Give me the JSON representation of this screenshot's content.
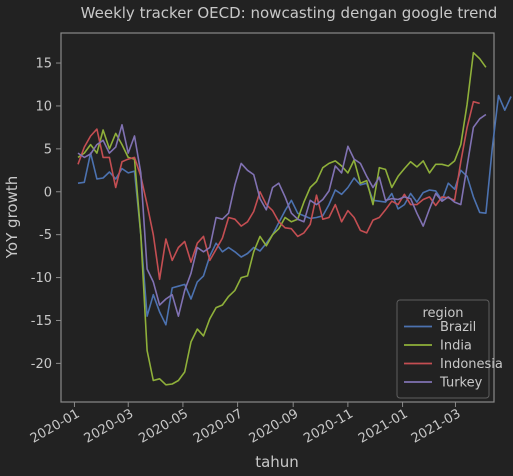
{
  "chart_data": {
    "type": "line",
    "title": "Weekly tracker OECD: nowcasting dengan google trend",
    "xlabel": "tahun",
    "ylabel": "YoY growth",
    "x_range": [
      "2019-12-17",
      "2021-04-13"
    ],
    "xticks": [
      "2020-01-01",
      "2020-03-01",
      "2020-05-01",
      "2020-07-01",
      "2020-09-01",
      "2020-11-01",
      "2021-01-01",
      "2021-03-01"
    ],
    "xtick_labels": [
      "2020-01",
      "2020-03",
      "2020-05",
      "2020-07",
      "2020-09",
      "2020-11",
      "2021-01",
      "2021-03"
    ],
    "ylim": [
      -24.5,
      18.5
    ],
    "yticks": [
      -20,
      -15,
      -10,
      -5,
      0,
      5,
      10,
      15
    ],
    "grid": false,
    "legend": {
      "title": "region",
      "placement": "lower right"
    },
    "colors": {
      "background": "#222222",
      "text": "#c8c8c8",
      "axes_edge": "#8a8a8a"
    },
    "start_date": "2020-01-05",
    "series": [
      {
        "name": "Brazil",
        "color": "#4c72b0",
        "values": [
          1.0,
          1.1,
          4.5,
          1.5,
          1.6,
          2.3,
          1.5,
          2.7,
          2.2,
          2.4,
          -5.0,
          -14.5,
          -12.0,
          -14.0,
          -15.5,
          -11.2,
          -11.0,
          -10.8,
          -12.5,
          -10.5,
          -9.8,
          -7.5,
          -6.0,
          -7.0,
          -6.5,
          -7.0,
          -7.6,
          -7.2,
          -6.5,
          -6.9,
          -6.0,
          -5.0,
          -3.6,
          -2.2,
          -1.0,
          -2.5,
          -2.8,
          -3.1,
          -3.0,
          -2.8,
          -1.5,
          0.2,
          -0.3,
          0.5,
          1.6,
          0.8,
          1.0,
          -1.0,
          -1.1,
          -1.2,
          -0.2,
          -2.0,
          -1.5,
          -0.2,
          -1.2,
          -0.1,
          0.2,
          0.1,
          -1.0,
          1.0,
          0.3,
          2.5,
          1.8,
          -0.6,
          -2.4,
          -2.5,
          5.0,
          11.2,
          9.5,
          11.1
        ]
      },
      {
        "name": "India",
        "color": "#8fb03a",
        "values": [
          4.0,
          4.5,
          5.5,
          4.5,
          7.2,
          5.0,
          6.8,
          5.5,
          4.0,
          3.8,
          -5.0,
          -18.5,
          -22.0,
          -21.8,
          -22.5,
          -22.4,
          -22.0,
          -21.0,
          -17.5,
          -16.0,
          -16.8,
          -14.8,
          -13.5,
          -13.2,
          -12.2,
          -11.5,
          -10.0,
          -9.8,
          -7.0,
          -5.2,
          -6.3,
          -5.0,
          -4.3,
          -3.0,
          -3.5,
          -3.2,
          -1.2,
          0.5,
          1.2,
          2.8,
          3.3,
          3.6,
          3.0,
          2.2,
          3.7,
          1.0,
          1.3,
          -1.5,
          2.8,
          2.6,
          0.5,
          1.8,
          2.7,
          3.5,
          2.9,
          3.6,
          2.2,
          3.2,
          3.2,
          3.0,
          3.6,
          5.5,
          10.2,
          16.2,
          15.5,
          14.5
        ]
      },
      {
        "name": "Indonesia",
        "color": "#c44e52",
        "values": [
          3.2,
          5.2,
          6.5,
          7.3,
          4.0,
          4.0,
          0.5,
          3.5,
          3.8,
          4.0,
          1.8,
          -1.5,
          -5.0,
          -10.2,
          -5.5,
          -8.0,
          -6.5,
          -5.8,
          -8.2,
          -6.0,
          -5.2,
          -8.0,
          -6.7,
          -5.4,
          -3.0,
          -3.2,
          -4.0,
          -3.5,
          -2.3,
          0.0,
          -1.5,
          -2.2,
          -3.5,
          -4.2,
          -4.3,
          -5.2,
          -4.8,
          -3.8,
          -0.4,
          -3.2,
          -3.0,
          -1.5,
          -3.5,
          -2.2,
          -3.0,
          -4.5,
          -4.8,
          -3.3,
          -3.0,
          -2.1,
          -1.1,
          -1.5,
          -0.3,
          -1.5,
          -1.5,
          -0.9,
          -0.6,
          -1.6,
          -0.6,
          -0.7,
          -1.0,
          3.5,
          7.5,
          10.5,
          10.3
        ]
      },
      {
        "name": "Turkey",
        "color": "#8172b3",
        "values": [
          4.5,
          4.0,
          4.4,
          5.5,
          6.0,
          4.5,
          5.2,
          7.8,
          4.5,
          6.5,
          2.2,
          -9.0,
          -10.5,
          -13.2,
          -12.5,
          -12.0,
          -14.5,
          -11.5,
          -9.5,
          -6.5,
          -7.0,
          -6.5,
          -3.0,
          -3.2,
          -2.5,
          0.8,
          3.3,
          2.5,
          2.0,
          -0.8,
          -2.1,
          0.5,
          1.0,
          -0.6,
          -2.5,
          -3.2,
          -3.5,
          -1.0,
          -1.5,
          -0.9,
          0.1,
          3.0,
          2.2,
          5.3,
          3.8,
          3.3,
          1.8,
          0.5,
          1.7,
          -1.0,
          -0.8,
          -0.9,
          -0.6,
          -0.8,
          -2.5,
          -4.0,
          -2.0,
          -0.2,
          -1.1,
          -0.6,
          -1.2,
          -1.5,
          3.0,
          7.5,
          8.5,
          9.0
        ]
      }
    ]
  }
}
